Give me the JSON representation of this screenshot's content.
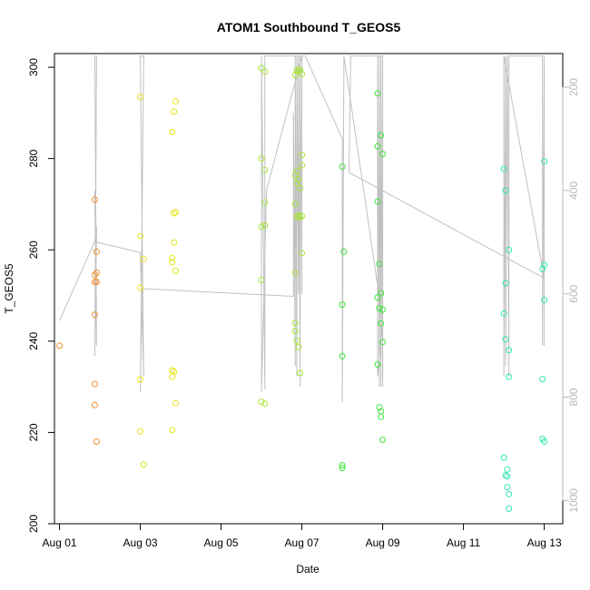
{
  "chart_data": {
    "type": "scatter",
    "title": "ATOM1 Southbound T_GEOS5",
    "xlabel": "Date",
    "ylabel": "T_GEOS5",
    "xlim": [
      "2016-07-31T21:00",
      "2016-08-13T11:00"
    ],
    "ylim": [
      200,
      303
    ],
    "x_ticks": [
      {
        "date": "2016-08-01",
        "label": "Aug 01"
      },
      {
        "date": "2016-08-03",
        "label": "Aug 03"
      },
      {
        "date": "2016-08-05",
        "label": "Aug 05"
      },
      {
        "date": "2016-08-07",
        "label": "Aug 07"
      },
      {
        "date": "2016-08-09",
        "label": "Aug 09"
      },
      {
        "date": "2016-08-11",
        "label": "Aug 11"
      },
      {
        "date": "2016-08-13",
        "label": "Aug 13"
      }
    ],
    "y_ticks": [
      200,
      220,
      240,
      260,
      280,
      300
    ],
    "right_axis": {
      "description": "pressure, inverted",
      "range": [
        135,
        1045
      ],
      "inverted": true,
      "ticks": [
        200,
        400,
        600,
        800,
        1000
      ],
      "color": "#b8b8b8"
    },
    "grid": false,
    "legend": "none",
    "series": [
      {
        "color": "#f09030",
        "points": [
          [
            "2016-08-01T00:00",
            239
          ],
          [
            "2016-08-01T21:00",
            271
          ],
          [
            "2016-08-01T21:00",
            254.5
          ],
          [
            "2016-08-01T21:00",
            253
          ],
          [
            "2016-08-01T21:00",
            245.8
          ],
          [
            "2016-08-01T21:00",
            230.6
          ],
          [
            "2016-08-01T21:00",
            226
          ],
          [
            "2016-08-01T22:00",
            259.6
          ],
          [
            "2016-08-01T22:00",
            255
          ],
          [
            "2016-08-01T22:00",
            253
          ],
          [
            "2016-08-01T22:00",
            218
          ]
        ]
      },
      {
        "color": "#e6e61a",
        "points": [
          [
            "2016-08-03T00:00",
            293.5
          ],
          [
            "2016-08-03T00:00",
            263
          ],
          [
            "2016-08-03T00:00",
            251.7
          ],
          [
            "2016-08-03T00:00",
            231.6
          ],
          [
            "2016-08-03T00:00",
            220.2
          ],
          [
            "2016-08-03T02:00",
            258
          ],
          [
            "2016-08-03T02:00",
            213
          ],
          [
            "2016-08-03T19:00",
            285.8
          ],
          [
            "2016-08-03T19:00",
            258.2
          ],
          [
            "2016-08-03T19:00",
            257.3
          ],
          [
            "2016-08-03T19:00",
            233.6
          ],
          [
            "2016-08-03T19:00",
            232.2
          ],
          [
            "2016-08-03T19:00",
            220.5
          ],
          [
            "2016-08-03T20:00",
            290.3
          ],
          [
            "2016-08-03T20:00",
            268
          ],
          [
            "2016-08-03T20:00",
            261.6
          ],
          [
            "2016-08-03T20:00",
            233.3
          ],
          [
            "2016-08-03T21:00",
            292.5
          ],
          [
            "2016-08-03T21:00",
            268.3
          ],
          [
            "2016-08-03T21:00",
            255.4
          ],
          [
            "2016-08-03T21:00",
            226.4
          ]
        ]
      },
      {
        "color": "#a8e63a",
        "points": [
          [
            "2016-08-06T00:00",
            299.8
          ],
          [
            "2016-08-06T00:00",
            280
          ],
          [
            "2016-08-06T00:00",
            265.1
          ],
          [
            "2016-08-06T00:00",
            253.4
          ],
          [
            "2016-08-06T00:00",
            226.7
          ],
          [
            "2016-08-06T02:00",
            299
          ],
          [
            "2016-08-06T02:00",
            277.5
          ],
          [
            "2016-08-06T02:00",
            270.4
          ],
          [
            "2016-08-06T02:00",
            265.4
          ],
          [
            "2016-08-06T02:00",
            226.3
          ],
          [
            "2016-08-06T20:00",
            298.3
          ],
          [
            "2016-08-06T20:00",
            276.3
          ],
          [
            "2016-08-06T20:00",
            270
          ],
          [
            "2016-08-06T20:00",
            255
          ],
          [
            "2016-08-06T20:00",
            244
          ],
          [
            "2016-08-06T20:00",
            242.2
          ],
          [
            "2016-08-06T21:00",
            299.2
          ],
          [
            "2016-08-06T21:00",
            277.3
          ],
          [
            "2016-08-06T21:00",
            274.5
          ],
          [
            "2016-08-06T21:00",
            267.2
          ],
          [
            "2016-08-06T21:00",
            240.1
          ],
          [
            "2016-08-06T22:00",
            299.5
          ],
          [
            "2016-08-06T22:00",
            275.5
          ],
          [
            "2016-08-06T22:00",
            267.5
          ],
          [
            "2016-08-06T22:00",
            238.7
          ],
          [
            "2016-08-06T23:00",
            299.3
          ],
          [
            "2016-08-06T23:00",
            273.5
          ],
          [
            "2016-08-06T23:00",
            267.1
          ],
          [
            "2016-08-06T23:00",
            233
          ],
          [
            "2016-08-07T00:00",
            298.5
          ],
          [
            "2016-08-07T00:00",
            280.8
          ],
          [
            "2016-08-07T00:00",
            278.5
          ],
          [
            "2016-08-07T00:00",
            267.4
          ],
          [
            "2016-08-07T00:00",
            259.3
          ]
        ]
      },
      {
        "color": "#3ae63a",
        "points": [
          [
            "2016-08-08T00:00",
            278.2
          ],
          [
            "2016-08-08T00:00",
            248
          ],
          [
            "2016-08-08T00:00",
            236.7
          ],
          [
            "2016-08-08T00:00",
            212.8
          ],
          [
            "2016-08-08T00:00",
            212.2
          ],
          [
            "2016-08-08T01:00",
            259.6
          ],
          [
            "2016-08-08T21:00",
            294.3
          ],
          [
            "2016-08-08T21:00",
            282.7
          ],
          [
            "2016-08-08T21:00",
            270.6
          ],
          [
            "2016-08-08T21:00",
            249.6
          ],
          [
            "2016-08-08T21:00",
            234.9
          ],
          [
            "2016-08-08T22:00",
            256.9
          ],
          [
            "2016-08-08T22:00",
            247.2
          ],
          [
            "2016-08-08T22:00",
            225.5
          ],
          [
            "2016-08-08T23:00",
            285.1
          ],
          [
            "2016-08-08T23:00",
            250.5
          ],
          [
            "2016-08-08T23:00",
            243.9
          ],
          [
            "2016-08-08T23:00",
            224.6
          ],
          [
            "2016-08-08T23:00",
            223.4
          ],
          [
            "2016-08-09T00:00",
            281
          ],
          [
            "2016-08-09T00:00",
            246.9
          ],
          [
            "2016-08-09T00:00",
            239.8
          ],
          [
            "2016-08-09T00:00",
            218.4
          ]
        ]
      },
      {
        "color": "#30e6b4",
        "points": [
          [
            "2016-08-12T00:00",
            277.7
          ],
          [
            "2016-08-12T00:00",
            246.1
          ],
          [
            "2016-08-12T00:00",
            214.5
          ],
          [
            "2016-08-12T01:00",
            273
          ],
          [
            "2016-08-12T01:00",
            252.7
          ],
          [
            "2016-08-12T01:00",
            240.4
          ],
          [
            "2016-08-12T01:00",
            210.6
          ],
          [
            "2016-08-12T02:00",
            211.9
          ],
          [
            "2016-08-12T02:00",
            210.4
          ],
          [
            "2016-08-12T02:00",
            208
          ],
          [
            "2016-08-12T03:00",
            260
          ],
          [
            "2016-08-12T03:00",
            238
          ],
          [
            "2016-08-12T03:00",
            232.2
          ],
          [
            "2016-08-12T03:00",
            206.5
          ],
          [
            "2016-08-12T03:00",
            203.3
          ],
          [
            "2016-08-12T23:00",
            255.8
          ],
          [
            "2016-08-12T23:00",
            231.7
          ],
          [
            "2016-08-12T23:00",
            218.6
          ],
          [
            "2016-08-13T00:00",
            279.4
          ],
          [
            "2016-08-13T00:00",
            256.7
          ],
          [
            "2016-08-13T00:00",
            249
          ],
          [
            "2016-08-13T00:00",
            218
          ]
        ]
      }
    ],
    "profile_line": {
      "axis": "right",
      "color": "#c0c0c0",
      "points": [
        [
          "2016-08-01T00:00",
          652
        ],
        [
          "2016-08-01T21:00",
          498
        ],
        [
          "2016-08-01T22:00",
          470
        ],
        [
          "2016-08-01T21:00",
          720
        ],
        [
          "2016-08-01T22:00",
          140
        ],
        [
          "2016-08-01T21:00",
          140
        ],
        [
          "2016-08-01T22:00",
          700
        ],
        [
          "2016-08-01T21:00",
          400
        ],
        [
          "2016-08-01T22:00",
          500
        ],
        [
          "2016-08-03T00:00",
          520
        ],
        [
          "2016-08-03T02:00",
          760
        ],
        [
          "2016-08-03T00:00",
          140
        ],
        [
          "2016-08-03T02:00",
          140
        ],
        [
          "2016-08-03T00:00",
          790
        ],
        [
          "2016-08-03T01:00",
          590
        ],
        [
          "2016-08-06T19:00",
          605
        ],
        [
          "2016-08-06T19:00",
          250
        ],
        [
          "2016-08-06T20:00",
          740
        ],
        [
          "2016-08-06T20:00",
          140
        ],
        [
          "2016-08-06T21:00",
          760
        ],
        [
          "2016-08-06T21:00",
          140
        ],
        [
          "2016-08-06T22:00",
          600
        ],
        [
          "2016-08-06T22:00",
          140
        ],
        [
          "2016-08-06T23:00",
          780
        ],
        [
          "2016-08-06T23:00",
          140
        ],
        [
          "2016-08-07T00:00",
          600
        ],
        [
          "2016-08-07T00:00",
          140
        ],
        [
          "2016-08-06T03:00",
          400
        ],
        [
          "2016-08-06T00:00",
          790
        ],
        [
          "2016-08-06T00:00",
          140
        ],
        [
          "2016-08-06T02:00",
          785
        ],
        [
          "2016-08-06T02:00",
          140
        ],
        [
          "2016-08-06T03:00",
          140
        ],
        [
          "2016-08-07T02:00",
          140
        ],
        [
          "2016-08-08T00:00",
          300
        ],
        [
          "2016-08-08T00:00",
          810
        ],
        [
          "2016-08-08T01:00",
          140
        ],
        [
          "2016-08-09T00:00",
          650
        ],
        [
          "2016-08-08T21:00",
          760
        ],
        [
          "2016-08-08T21:00",
          140
        ],
        [
          "2016-08-08T22:00",
          780
        ],
        [
          "2016-08-08T22:00",
          140
        ],
        [
          "2016-08-08T23:00",
          780
        ],
        [
          "2016-08-08T23:00",
          140
        ],
        [
          "2016-08-09T00:00",
          780
        ],
        [
          "2016-08-09T00:00",
          140
        ],
        [
          "2016-08-08T05:00",
          140
        ],
        [
          "2016-08-08T04:00",
          365
        ],
        [
          "2016-08-13T00:00",
          570
        ],
        [
          "2016-08-12T00:00",
          140
        ],
        [
          "2016-08-12T00:00",
          760
        ],
        [
          "2016-08-12T01:00",
          140
        ],
        [
          "2016-08-12T01:00",
          740
        ],
        [
          "2016-08-12T02:00",
          140
        ],
        [
          "2016-08-12T03:00",
          760
        ],
        [
          "2016-08-12T03:00",
          140
        ],
        [
          "2016-08-12T23:00",
          140
        ],
        [
          "2016-08-12T23:00",
          700
        ],
        [
          "2016-08-13T00:00",
          140
        ],
        [
          "2016-08-13T00:00",
          700
        ]
      ]
    }
  }
}
